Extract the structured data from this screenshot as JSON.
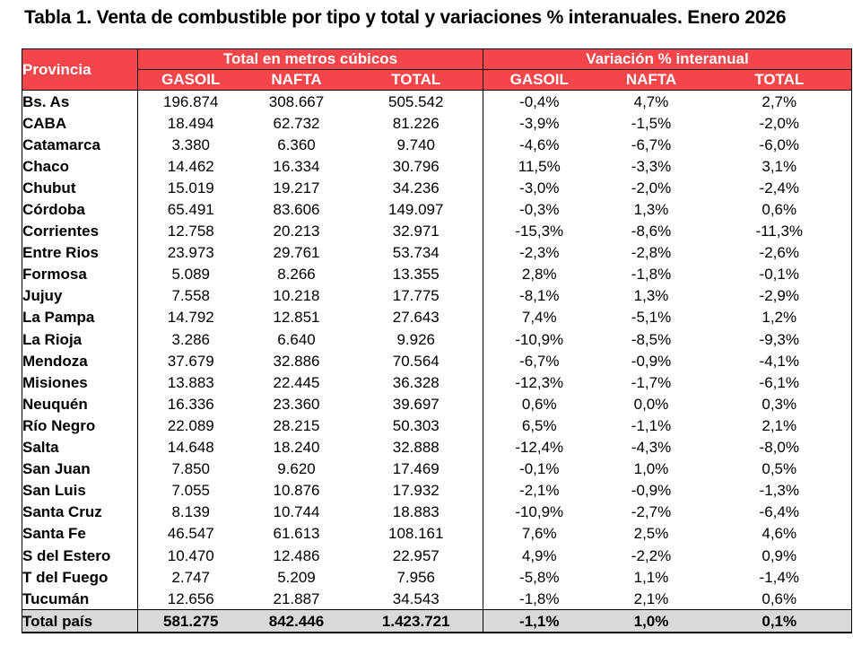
{
  "title": "Tabla 1. Venta de combustible por tipo y total y variaciones % interanuales. Enero 2026",
  "header": {
    "provincia": "Provincia",
    "group_volume": "Total en metros cúbicos",
    "group_variation": "Variación % interanual",
    "sub": [
      "GASOIL",
      "NAFTA",
      "TOTAL",
      "GASOIL",
      "NAFTA",
      "TOTAL"
    ]
  },
  "rows": [
    {
      "provincia": "Bs. As",
      "gasoil": "196.874",
      "nafta": "308.667",
      "total": "505.542",
      "var_gasoil": "-0,4%",
      "var_nafta": "4,7%",
      "var_total": "2,7%"
    },
    {
      "provincia": "CABA",
      "gasoil": "18.494",
      "nafta": "62.732",
      "total": "81.226",
      "var_gasoil": "-3,9%",
      "var_nafta": "-1,5%",
      "var_total": "-2,0%"
    },
    {
      "provincia": "Catamarca",
      "gasoil": "3.380",
      "nafta": "6.360",
      "total": "9.740",
      "var_gasoil": "-4,6%",
      "var_nafta": "-6,7%",
      "var_total": "-6,0%"
    },
    {
      "provincia": "Chaco",
      "gasoil": "14.462",
      "nafta": "16.334",
      "total": "30.796",
      "var_gasoil": "11,5%",
      "var_nafta": "-3,3%",
      "var_total": "3,1%"
    },
    {
      "provincia": "Chubut",
      "gasoil": "15.019",
      "nafta": "19.217",
      "total": "34.236",
      "var_gasoil": "-3,0%",
      "var_nafta": "-2,0%",
      "var_total": "-2,4%"
    },
    {
      "provincia": "Córdoba",
      "gasoil": "65.491",
      "nafta": "83.606",
      "total": "149.097",
      "var_gasoil": "-0,3%",
      "var_nafta": "1,3%",
      "var_total": "0,6%"
    },
    {
      "provincia": "Corrientes",
      "gasoil": "12.758",
      "nafta": "20.213",
      "total": "32.971",
      "var_gasoil": "-15,3%",
      "var_nafta": "-8,6%",
      "var_total": "-11,3%"
    },
    {
      "provincia": "Entre Rios",
      "gasoil": "23.973",
      "nafta": "29.761",
      "total": "53.734",
      "var_gasoil": "-2,3%",
      "var_nafta": "-2,8%",
      "var_total": "-2,6%"
    },
    {
      "provincia": "Formosa",
      "gasoil": "5.089",
      "nafta": "8.266",
      "total": "13.355",
      "var_gasoil": "2,8%",
      "var_nafta": "-1,8%",
      "var_total": "-0,1%"
    },
    {
      "provincia": "Jujuy",
      "gasoil": "7.558",
      "nafta": "10.218",
      "total": "17.775",
      "var_gasoil": "-8,1%",
      "var_nafta": "1,3%",
      "var_total": "-2,9%"
    },
    {
      "provincia": "La Pampa",
      "gasoil": "14.792",
      "nafta": "12.851",
      "total": "27.643",
      "var_gasoil": "7,4%",
      "var_nafta": "-5,1%",
      "var_total": "1,2%"
    },
    {
      "provincia": "La Rioja",
      "gasoil": "3.286",
      "nafta": "6.640",
      "total": "9.926",
      "var_gasoil": "-10,9%",
      "var_nafta": "-8,5%",
      "var_total": "-9,3%"
    },
    {
      "provincia": "Mendoza",
      "gasoil": "37.679",
      "nafta": "32.886",
      "total": "70.564",
      "var_gasoil": "-6,7%",
      "var_nafta": "-0,9%",
      "var_total": "-4,1%"
    },
    {
      "provincia": "Misiones",
      "gasoil": "13.883",
      "nafta": "22.445",
      "total": "36.328",
      "var_gasoil": "-12,3%",
      "var_nafta": "-1,7%",
      "var_total": "-6,1%"
    },
    {
      "provincia": "Neuquén",
      "gasoil": "16.336",
      "nafta": "23.360",
      "total": "39.697",
      "var_gasoil": "0,6%",
      "var_nafta": "0,0%",
      "var_total": "0,3%"
    },
    {
      "provincia": "Río Negro",
      "gasoil": "22.089",
      "nafta": "28.215",
      "total": "50.303",
      "var_gasoil": "6,5%",
      "var_nafta": "-1,1%",
      "var_total": "2,1%"
    },
    {
      "provincia": "Salta",
      "gasoil": "14.648",
      "nafta": "18.240",
      "total": "32.888",
      "var_gasoil": "-12,4%",
      "var_nafta": "-4,3%",
      "var_total": "-8,0%"
    },
    {
      "provincia": "San Juan",
      "gasoil": "7.850",
      "nafta": "9.620",
      "total": "17.469",
      "var_gasoil": "-0,1%",
      "var_nafta": "1,0%",
      "var_total": "0,5%"
    },
    {
      "provincia": "San Luis",
      "gasoil": "7.055",
      "nafta": "10.876",
      "total": "17.932",
      "var_gasoil": "-2,1%",
      "var_nafta": "-0,9%",
      "var_total": "-1,3%"
    },
    {
      "provincia": "Santa Cruz",
      "gasoil": "8.139",
      "nafta": "10.744",
      "total": "18.883",
      "var_gasoil": "-10,9%",
      "var_nafta": "-2,7%",
      "var_total": "-6,4%"
    },
    {
      "provincia": "Santa Fe",
      "gasoil": "46.547",
      "nafta": "61.613",
      "total": "108.161",
      "var_gasoil": "7,6%",
      "var_nafta": "2,5%",
      "var_total": "4,6%"
    },
    {
      "provincia": "S del Estero",
      "gasoil": "10.470",
      "nafta": "12.486",
      "total": "22.957",
      "var_gasoil": "4,9%",
      "var_nafta": "-2,2%",
      "var_total": "0,9%"
    },
    {
      "provincia": "T del Fuego",
      "gasoil": "2.747",
      "nafta": "5.209",
      "total": "7.956",
      "var_gasoil": "-5,8%",
      "var_nafta": "1,1%",
      "var_total": "-1,4%"
    },
    {
      "provincia": "Tucumán",
      "gasoil": "12.656",
      "nafta": "21.887",
      "total": "34.543",
      "var_gasoil": "-1,8%",
      "var_nafta": "2,1%",
      "var_total": "0,6%"
    }
  ],
  "footer": {
    "provincia": "Total país",
    "gasoil": "581.275",
    "nafta": "842.446",
    "total": "1.423.721",
    "var_gasoil": "-1,1%",
    "var_nafta": "1,0%",
    "var_total": "0,1%"
  },
  "colors": {
    "header_bg": "#f4454b",
    "header_text": "#ffffff",
    "footer_bg": "#d9d9d9"
  }
}
